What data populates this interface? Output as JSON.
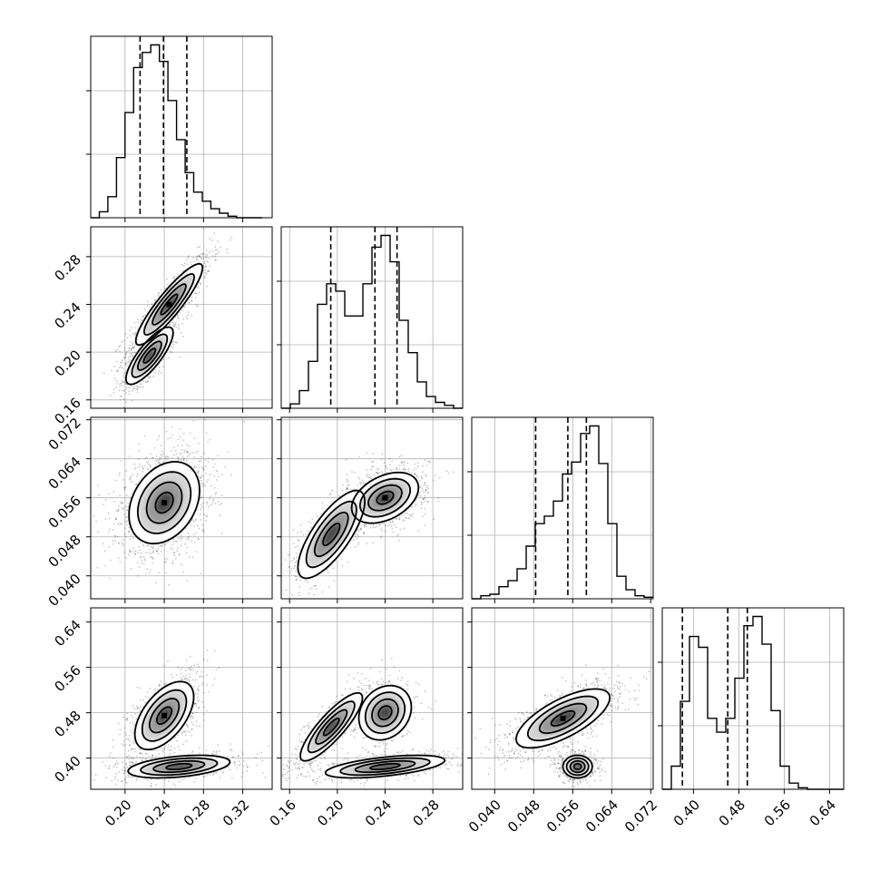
{
  "chart_data": {
    "type": "corner",
    "parameters": [
      {
        "ticks": [
          0.2,
          0.24,
          0.28,
          0.32
        ],
        "labels": [
          "0.20",
          "0.24",
          "0.28",
          "0.32"
        ],
        "lim": [
          0.165,
          0.35
        ]
      },
      {
        "ticks": [
          0.16,
          0.2,
          0.24,
          0.28
        ],
        "labels": [
          "0.16",
          "0.20",
          "0.24",
          "0.28"
        ],
        "lim": [
          0.153,
          0.305
        ]
      },
      {
        "ticks": [
          0.04,
          0.048,
          0.056,
          0.064,
          0.072
        ],
        "labels": [
          "0.040",
          "0.048",
          "0.056",
          "0.064",
          "0.072"
        ],
        "lim": [
          0.0353,
          0.0725
        ]
      },
      {
        "ticks": [
          0.4,
          0.48,
          0.56,
          0.64
        ],
        "labels": [
          "0.40",
          "0.48",
          "0.56",
          "0.64"
        ],
        "lim": [
          0.345,
          0.665
        ]
      }
    ],
    "diagonal": [
      {
        "bin_start": 0.165,
        "bin_width": 0.00875,
        "counts": [
          0,
          4,
          14,
          40,
          70,
          100,
          110,
          115,
          104,
          78,
          52,
          30,
          17,
          11,
          6,
          3,
          1,
          0,
          0,
          0
        ],
        "quantiles": [
          0.2153,
          0.2392,
          0.263
        ]
      },
      {
        "bin_start": 0.153,
        "bin_width": 0.0076,
        "counts": [
          0,
          3,
          12,
          32,
          71,
          85,
          80,
          63,
          63,
          85,
          110,
          118,
          100,
          60,
          38,
          18,
          8,
          4,
          2,
          0
        ],
        "quantiles": [
          0.1945,
          0.2315,
          0.25
        ]
      },
      {
        "bin_start": 0.0353,
        "bin_width": 0.00186,
        "counts": [
          0,
          2,
          3,
          8,
          12,
          20,
          35,
          50,
          55,
          65,
          83,
          91,
          110,
          115,
          90,
          50,
          15,
          6,
          2,
          1
        ],
        "quantiles": [
          0.0484,
          0.055,
          0.0588
        ]
      },
      {
        "bin_start": 0.345,
        "bin_width": 0.016,
        "counts": [
          0,
          15,
          57,
          99,
          92,
          46,
          37,
          46,
          72,
          106,
          112,
          94,
          51,
          15,
          4,
          1,
          0,
          0,
          0,
          0
        ],
        "quantiles": [
          0.3805,
          0.4605,
          0.495
        ]
      }
    ],
    "scatter_panels": [
      {
        "row": 1,
        "col": 0,
        "modes": [
          {
            "mean": [
              0.245,
              0.24
            ],
            "sd": [
              0.017,
              0.017
            ],
            "corr": 0.9,
            "weight": 0.62
          },
          {
            "mean": [
              0.225,
              0.197
            ],
            "sd": [
              0.012,
              0.012
            ],
            "corr": 0.8,
            "weight": 0.38
          }
        ]
      },
      {
        "row": 2,
        "col": 0,
        "modes": [
          {
            "mean": [
              0.24,
              0.055
            ],
            "sd": [
              0.018,
              0.0042
            ],
            "corr": 0.3,
            "weight": 1.0
          }
        ]
      },
      {
        "row": 2,
        "col": 1,
        "modes": [
          {
            "mean": [
              0.24,
              0.056
            ],
            "sd": [
              0.014,
              0.0026
            ],
            "corr": 0.4,
            "weight": 0.62
          },
          {
            "mean": [
              0.195,
              0.0485
            ],
            "sd": [
              0.014,
              0.0045
            ],
            "corr": 0.75,
            "weight": 0.38
          }
        ]
      },
      {
        "row": 3,
        "col": 0,
        "modes": [
          {
            "mean": [
              0.24,
              0.475
            ],
            "sd": [
              0.015,
              0.03
            ],
            "corr": 0.55,
            "weight": 0.6
          },
          {
            "mean": [
              0.255,
              0.385
            ],
            "sd": [
              0.026,
              0.01
            ],
            "corr": 0.4,
            "weight": 0.4
          }
        ]
      },
      {
        "row": 3,
        "col": 1,
        "modes": [
          {
            "mean": [
              0.195,
              0.455
            ],
            "sd": [
              0.013,
              0.03
            ],
            "corr": 0.85,
            "weight": 0.38
          },
          {
            "mean": [
              0.24,
              0.48
            ],
            "sd": [
              0.011,
              0.024
            ],
            "corr": 0.2,
            "weight": 0.24
          },
          {
            "mean": [
              0.24,
              0.385
            ],
            "sd": [
              0.025,
              0.01
            ],
            "corr": 0.55,
            "weight": 0.38
          }
        ]
      },
      {
        "row": 3,
        "col": 2,
        "modes": [
          {
            "mean": [
              0.054,
              0.47
            ],
            "sd": [
              0.0048,
              0.026
            ],
            "corr": 0.7,
            "weight": 0.62
          },
          {
            "mean": [
              0.057,
              0.385
            ],
            "sd": [
              0.0015,
              0.01
            ],
            "corr": 0.0,
            "weight": 0.38
          }
        ]
      }
    ],
    "grid": true,
    "title": "",
    "legend": "none"
  }
}
